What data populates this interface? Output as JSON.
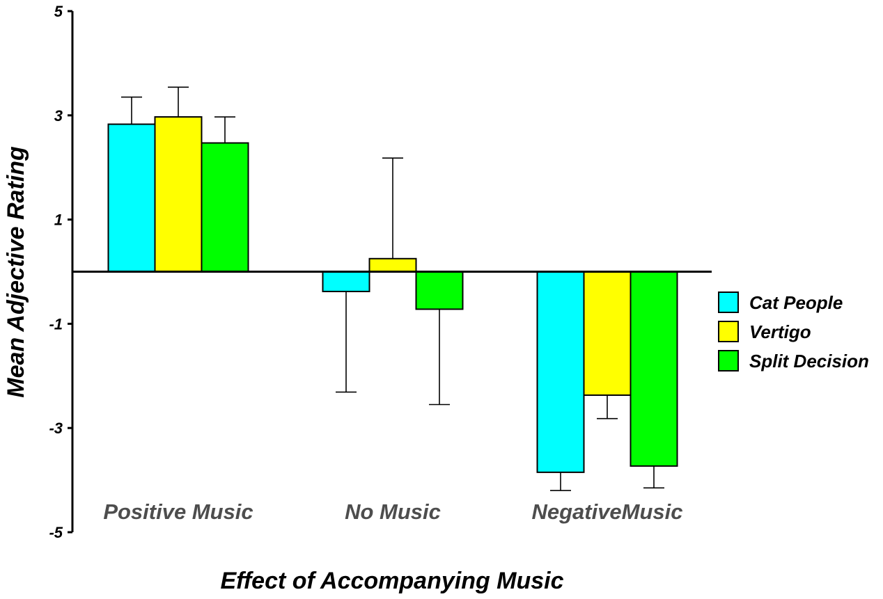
{
  "chart_data": {
    "type": "bar",
    "title": "",
    "xlabel": "Effect of Accompanying Music",
    "ylabel": "Mean Adjective Rating",
    "ylim": [
      -5,
      5
    ],
    "yticks": [
      "5",
      "3",
      "1",
      "-1",
      "-3",
      "-5"
    ],
    "categories": [
      "Positive Music",
      "No Music",
      "NegativeMusic"
    ],
    "series": [
      {
        "name": "Cat People",
        "color": "#00ffff",
        "values": [
          2.83,
          -0.38,
          -3.85
        ],
        "error": [
          0.52,
          1.93,
          0.35
        ]
      },
      {
        "name": "Vertigo",
        "color": "#ffff00",
        "values": [
          2.97,
          0.25,
          -2.37
        ],
        "error": [
          0.57,
          1.93,
          0.45
        ]
      },
      {
        "name": "Split Decision",
        "color": "#00ff00",
        "values": [
          2.47,
          -0.72,
          -3.73
        ],
        "error": [
          0.5,
          1.83,
          0.42
        ]
      }
    ],
    "legend_position": "right",
    "grid": false
  }
}
